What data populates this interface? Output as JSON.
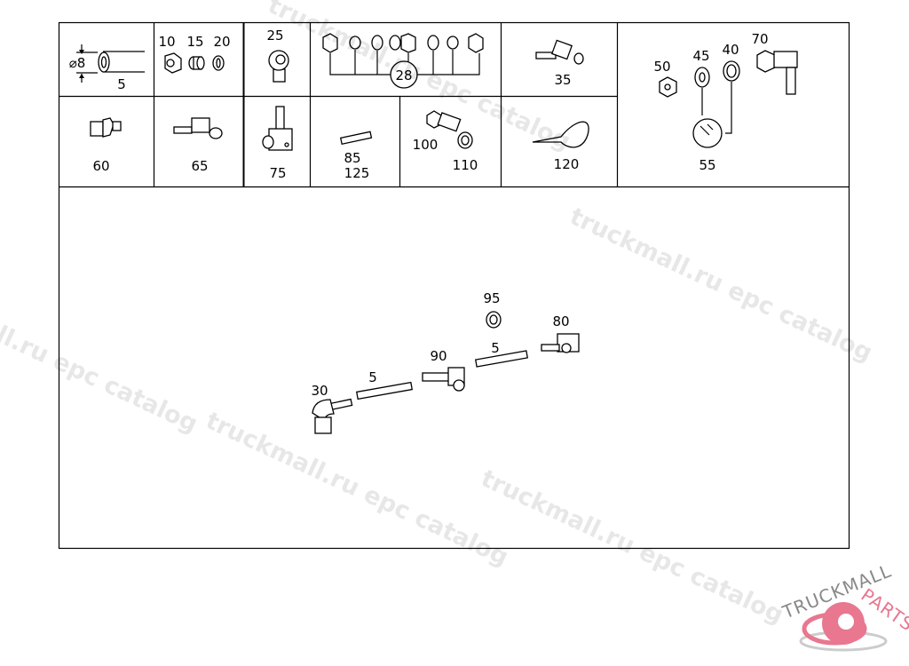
{
  "diagram": {
    "top_cells": {
      "hose": {
        "diameter": "⌀8",
        "item": "5"
      },
      "fittings": [
        "10",
        "15",
        "20"
      ],
      "banjo": "25",
      "kit": "28",
      "elbow": "35",
      "tool_set": {
        "items": [
          "50",
          "45",
          "40",
          "70"
        ],
        "tool": "55"
      }
    },
    "second_row": {
      "c1": "60",
      "c2": "65",
      "c3": "75",
      "c4": [
        "85",
        "125"
      ],
      "c5": [
        "100",
        "110"
      ],
      "c6": "120"
    },
    "assembly": {
      "labels": [
        "95",
        "80",
        "5",
        "90",
        "5",
        "30"
      ]
    }
  },
  "watermark": {
    "text": "truckmall.ru epc catalog"
  },
  "logo": {
    "text_a": "TRUCKMALL",
    "text_b": "PARTS",
    "color": "#e8778f"
  }
}
